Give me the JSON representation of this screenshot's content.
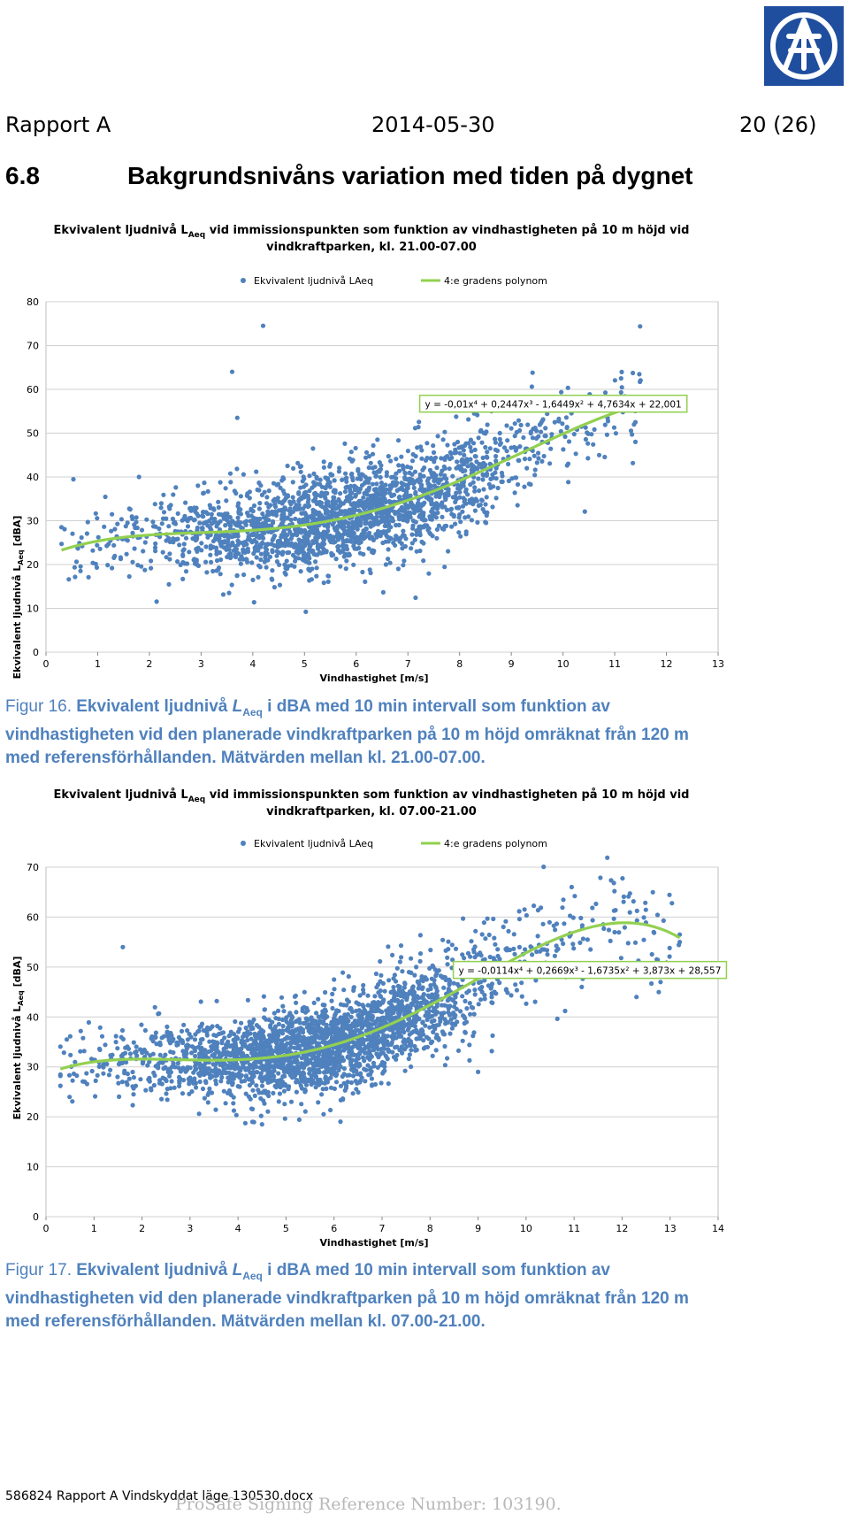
{
  "logo": {
    "icon": "af-logo",
    "colors": {
      "background": "#1f4e9e",
      "foreground": "#ffffff"
    }
  },
  "header": {
    "left": "Rapport A",
    "center": "2014-05-30",
    "right": "20 (26)"
  },
  "section": {
    "number": "6.8",
    "title": "Bakgrundsnivåns variation med tiden på dygnet"
  },
  "chart_data": [
    {
      "type": "scatter",
      "title": {
        "line1_pre": "Ekvivalent ljudnivå L",
        "line1_sub": "Aeq",
        "line1_post": " vid immissionspunkten som funktion av vindhastigheten på 10 m höjd vid",
        "line2": "vindkraftparken, kl. 21.00-07.00"
      },
      "xlabel": "Vindhastighet [m/s]",
      "ylabel": {
        "pre": "Ekvivalent ljudnivå L",
        "sub": "Aeq",
        "post": " [dBA]"
      },
      "xlim": [
        0,
        13
      ],
      "ylim": [
        0,
        80
      ],
      "xticks": [
        "0",
        "1",
        "2",
        "3",
        "4",
        "5",
        "6",
        "7",
        "8",
        "9",
        "10",
        "11",
        "12",
        "13"
      ],
      "yticks": [
        "0",
        "10",
        "20",
        "30",
        "40",
        "50",
        "60",
        "70",
        "80"
      ],
      "grid": true,
      "legend": {
        "placement": "top",
        "scatter_name": "Ekvivalent ljudnivå LAeq",
        "trend_name": "4:e gradens polynom"
      },
      "equation": {
        "text": "y = -0,01x⁴ + 0,2447x³ - 1,6449x² + 4,7634x + 22,001",
        "box_left": 0.556,
        "box_top": 0.733
      },
      "trend": {
        "coefficients": [
          -0.01,
          0.2447,
          -1.6449,
          4.7634,
          22.001
        ],
        "x_range": [
          0.3,
          11.5
        ],
        "color": "#92d050"
      },
      "colors": {
        "points": "#4f81bd",
        "trend": "#92d050"
      },
      "point_count": 2200,
      "outliers": [
        [
          3.6,
          64
        ],
        [
          4.2,
          74.5
        ],
        [
          3.7,
          53.5
        ],
        [
          1.8,
          40
        ],
        [
          11.4,
          48
        ],
        [
          11.4,
          52.5
        ],
        [
          10.7,
          45
        ]
      ]
    },
    {
      "type": "scatter",
      "title": {
        "line1_pre": "Ekvivalent ljudnivå L",
        "line1_sub": "Aeq",
        "line1_post": " vid immissionspunkten som funktion av vindhastigheten på 10 m höjd vid",
        "line2": "vindkraftparken, kl. 07.00-21.00"
      },
      "xlabel": "Vindhastighet [m/s]",
      "ylabel": {
        "pre": "Ekvivalent ljudnivå L",
        "sub": "Aeq",
        "post": " [dBA]"
      },
      "xlim": [
        0,
        14
      ],
      "ylim": [
        0,
        70
      ],
      "xticks": [
        "0",
        "1",
        "2",
        "3",
        "4",
        "5",
        "6",
        "7",
        "8",
        "9",
        "10",
        "11",
        "12",
        "13",
        "14"
      ],
      "yticks": [
        "0",
        "10",
        "20",
        "30",
        "40",
        "50",
        "60",
        "70"
      ],
      "grid": true,
      "legend": {
        "placement": "top",
        "scatter_name": "Ekvivalent ljudnivå LAeq",
        "trend_name": "4:e gradens polynom"
      },
      "equation": {
        "text": "y = -0,0114x⁴ + 0,2669x³ - 1,6735x² + 3,873x + 28,557",
        "box_left": 0.606,
        "box_top": 0.73
      },
      "trend": {
        "coefficients": [
          -0.0114,
          0.2669,
          -1.6735,
          3.873,
          28.557
        ],
        "x_range": [
          0.3,
          13.2
        ],
        "color": "#92d050"
      },
      "colors": {
        "points": "#4f81bd",
        "trend": "#92d050"
      },
      "point_count": 2600,
      "outliers": [
        [
          1.6,
          54
        ],
        [
          4.3,
          19
        ],
        [
          4.5,
          18.5
        ],
        [
          12.3,
          44
        ],
        [
          12.8,
          47
        ],
        [
          13.2,
          56.5
        ],
        [
          9.0,
          29
        ],
        [
          13.2,
          55
        ]
      ]
    }
  ],
  "captions": [
    {
      "fig_label": "Figur 16.",
      "pre": " Ekvivalent ljudnivå ",
      "sym": "L",
      "sub": "Aeq",
      "post": " i dBA med 10 min intervall som funktion av",
      "line2": "vindhastigheten vid den planerade vindkraftparken på 10 m höjd omräknat från 120 m",
      "line3": "med referensförhållanden. Mätvärden mellan kl. 21.00-07.00."
    },
    {
      "fig_label": "Figur 17.",
      "pre": " Ekvivalent ljudnivå ",
      "sym": "L",
      "sub": "Aeq",
      "post": " i dBA med 10 min intervall som funktion av",
      "line2": "vindhastigheten vid den planerade vindkraftparken på 10 m höjd omräknat från 120 m",
      "line3": "med referensförhållanden. Mätvärden mellan kl. 07.00-21.00."
    }
  ],
  "footer": {
    "filename": "586824 Rapport A Vindskyddat läge 130530.docx"
  },
  "watermark": {
    "text": "ProSafe Signing Reference Number: 103190."
  }
}
